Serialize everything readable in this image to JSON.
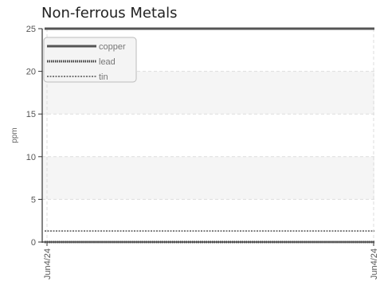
{
  "chart_data": {
    "type": "line",
    "title": "Non-ferrous Metals",
    "xlabel": "",
    "ylabel": "ppm",
    "x": [
      "Jun4/24",
      "Jun4/24"
    ],
    "ylim": [
      0,
      25
    ],
    "yticks": [
      0,
      5,
      10,
      15,
      20,
      25
    ],
    "grid": true,
    "legend_position": "top-left",
    "series": [
      {
        "name": "copper",
        "values": [
          25,
          25
        ],
        "color": "#555555",
        "style": "solid"
      },
      {
        "name": "lead",
        "values": [
          0,
          0
        ],
        "color": "#444444",
        "style": "dense-dotted"
      },
      {
        "name": "tin",
        "values": [
          1.3,
          1.3
        ],
        "color": "#555555",
        "style": "dotted"
      }
    ]
  }
}
